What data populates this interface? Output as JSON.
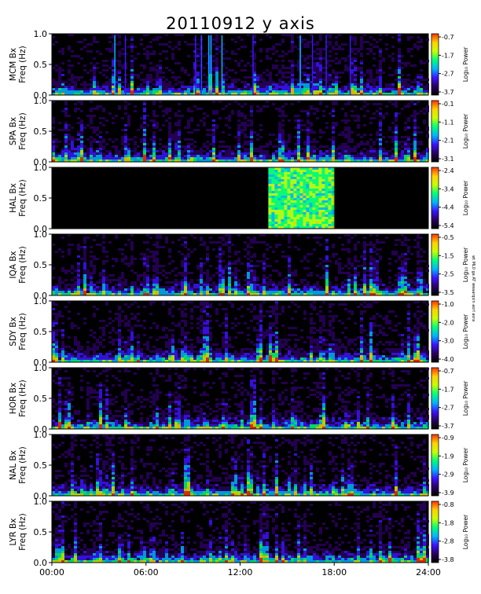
{
  "chart_data": {
    "type": "heatmap",
    "title": "20110912 y axis",
    "xlabel": "",
    "x_ticks": [
      "00:00",
      "06:00",
      "12:00",
      "18:00",
      "24:00"
    ],
    "x_range": [
      0,
      24
    ],
    "y_ticks": [
      "0.0",
      "0.5",
      "1.0"
    ],
    "y_range": [
      0,
      1.0
    ],
    "colorbar_label": "Log₁₀ Power",
    "colormap": [
      "#000000",
      "#2a0060",
      "#3b14ff",
      "#00b4ff",
      "#00ff7a",
      "#c8ff00",
      "#ffd200",
      "#ff3200"
    ],
    "side_note": "wt  ML0  ga AT  weaarqsin  aorl  asra",
    "panels": [
      {
        "station": "MCM",
        "component": "Bx",
        "ylabel_line1": "MCM Bx",
        "ylabel_line2": "Freq (Hz)",
        "cbar_ticks": [
          "-0.7",
          "-1.7",
          "-2.7",
          "-3.7"
        ],
        "data_gap_hours": null
      },
      {
        "station": "SPA",
        "component": "Bx",
        "ylabel_line1": "SPA Bx",
        "ylabel_line2": "Freq (Hz)",
        "cbar_ticks": [
          "-0.1",
          "-1.1",
          "-2.1",
          "-3.1"
        ],
        "data_gap_hours": null
      },
      {
        "station": "HAL",
        "component": "Bx",
        "ylabel_line1": "HAL Bx",
        "ylabel_line2": "Freq (Hz)",
        "cbar_ticks": [
          "-2.4",
          "-3.4",
          "-4.4",
          "-5.4"
        ],
        "data_hours": [
          13.8,
          17.9
        ]
      },
      {
        "station": "IQA",
        "component": "Bx",
        "ylabel_line1": "IQA Bx",
        "ylabel_line2": "Freq (Hz)",
        "cbar_ticks": [
          "-0.5",
          "-1.5",
          "-2.5",
          "-3.5"
        ],
        "data_gap_hours": null
      },
      {
        "station": "SDY",
        "component": "Bx",
        "ylabel_line1": "SDY Bx",
        "ylabel_line2": "Freq (Hz)",
        "cbar_ticks": [
          "-1.0",
          "-2.0",
          "-3.0",
          "-4.0"
        ],
        "data_gap_hours": null
      },
      {
        "station": "HOR",
        "component": "Bx",
        "ylabel_line1": "HOR Bx",
        "ylabel_line2": "Freq (Hz)",
        "cbar_ticks": [
          "-0.7",
          "-1.7",
          "-2.7",
          "-3.7"
        ],
        "data_gap_hours": null
      },
      {
        "station": "NAL",
        "component": "Bx",
        "ylabel_line1": "NAL Bx",
        "ylabel_line2": "Freq (Hz)",
        "cbar_ticks": [
          "-0.9",
          "-1.9",
          "-2.9",
          "-3.9"
        ],
        "data_gap_hours": null
      },
      {
        "station": "LYR",
        "component": "Bx",
        "ylabel_line1": "LYR Bx",
        "ylabel_line2": "Freq (Hz)",
        "cbar_ticks": [
          "-0.8",
          "-1.8",
          "-2.8",
          "-3.8"
        ],
        "data_gap_hours": null
      }
    ]
  }
}
